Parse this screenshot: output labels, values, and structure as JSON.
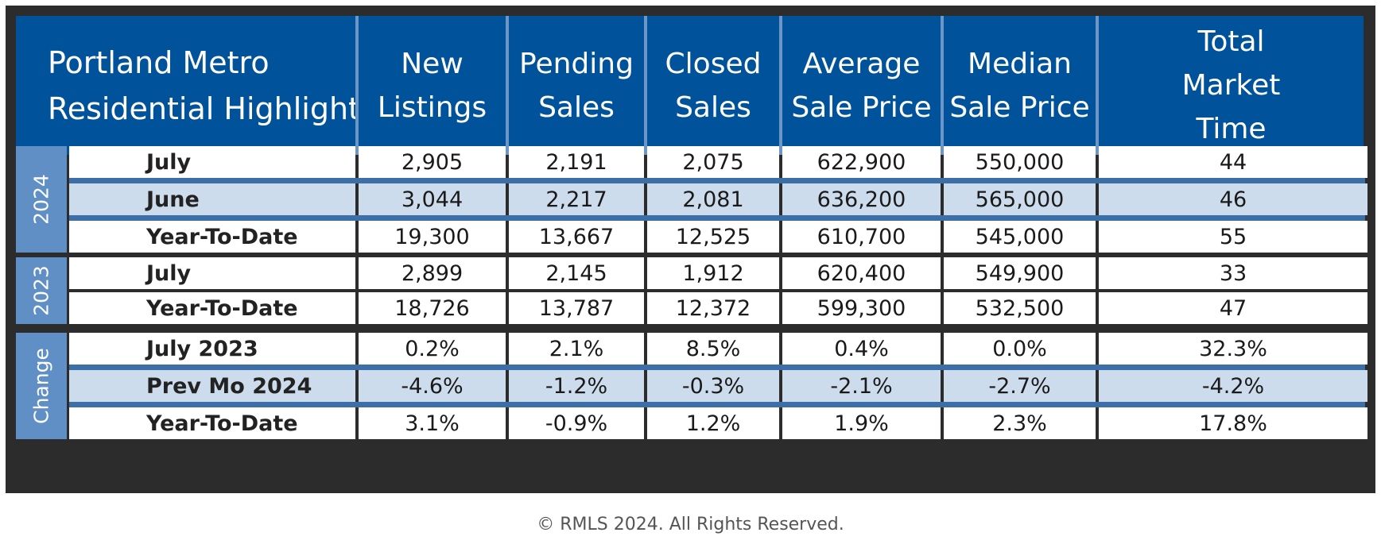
{
  "table": {
    "title_line1": "Portland Metro",
    "title_line2": "Residential Highlights",
    "columns": [
      [
        "New",
        "Listings"
      ],
      [
        "Pending",
        "Sales"
      ],
      [
        "Closed",
        "Sales"
      ],
      [
        "Average",
        "Sale Price"
      ],
      [
        "Median",
        "Sale Price"
      ],
      [
        "Total",
        "Market",
        "Time"
      ]
    ],
    "groups": [
      {
        "label": "2024",
        "rows": [
          {
            "label": "July",
            "values": [
              "2,905",
              "2,191",
              "2,075",
              "622,900",
              "550,000",
              "44"
            ]
          },
          {
            "label": "June",
            "values": [
              "3,044",
              "2,217",
              "2,081",
              "636,200",
              "565,000",
              "46"
            ]
          },
          {
            "label": "Year-To-Date",
            "values": [
              "19,300",
              "13,667",
              "12,525",
              "610,700",
              "545,000",
              "55"
            ]
          }
        ]
      },
      {
        "label": "2023",
        "rows": [
          {
            "label": "July",
            "values": [
              "2,899",
              "2,145",
              "1,912",
              "620,400",
              "549,900",
              "33"
            ]
          },
          {
            "label": "Year-To-Date",
            "values": [
              "18,726",
              "13,787",
              "12,372",
              "599,300",
              "532,500",
              "47"
            ]
          }
        ]
      },
      {
        "label": "Change",
        "rows": [
          {
            "label": "July 2023",
            "values": [
              "0.2%",
              "2.1%",
              "8.5%",
              "0.4%",
              "0.0%",
              "32.3%"
            ]
          },
          {
            "label": "Prev Mo 2024",
            "values": [
              "-4.6%",
              "-1.2%",
              "-0.3%",
              "-2.1%",
              "-2.7%",
              "-4.2%"
            ]
          },
          {
            "label": "Year-To-Date",
            "values": [
              "3.1%",
              "-0.9%",
              "1.2%",
              "1.9%",
              "2.3%",
              "17.8%"
            ]
          }
        ]
      }
    ]
  },
  "chart_data": {
    "type": "table",
    "title": "Portland Metro Residential Highlights",
    "columns": [
      "New Listings",
      "Pending Sales",
      "Closed Sales",
      "Average Sale Price",
      "Median Sale Price",
      "Total Market Time"
    ],
    "rows": [
      {
        "group": "2024",
        "label": "July",
        "values": [
          2905,
          2191,
          2075,
          622900,
          550000,
          44
        ]
      },
      {
        "group": "2024",
        "label": "June",
        "values": [
          3044,
          2217,
          2081,
          636200,
          565000,
          46
        ]
      },
      {
        "group": "2024",
        "label": "Year-To-Date",
        "values": [
          19300,
          13667,
          12525,
          610700,
          545000,
          55
        ]
      },
      {
        "group": "2023",
        "label": "July",
        "values": [
          2899,
          2145,
          1912,
          620400,
          549900,
          33
        ]
      },
      {
        "group": "2023",
        "label": "Year-To-Date",
        "values": [
          18726,
          13787,
          12372,
          599300,
          532500,
          47
        ]
      },
      {
        "group": "Change",
        "label": "July 2023",
        "values": [
          0.2,
          2.1,
          8.5,
          0.4,
          0.0,
          32.3
        ]
      },
      {
        "group": "Change",
        "label": "Prev Mo 2024",
        "values": [
          -4.6,
          -1.2,
          -0.3,
          -2.1,
          -2.7,
          -4.2
        ]
      },
      {
        "group": "Change",
        "label": "Year-To-Date",
        "values": [
          3.1,
          -0.9,
          1.2,
          1.9,
          2.3,
          17.8
        ]
      }
    ]
  },
  "colors": {
    "header_blue": "#00529b",
    "group_label_blue": "#5f8fc5",
    "row_shade": "#cddcec",
    "separator_blue": "#3c6ea8",
    "frame": "#2c2c2c"
  },
  "footer": {
    "copyright": "© RMLS 2024. All Rights Reserved."
  }
}
